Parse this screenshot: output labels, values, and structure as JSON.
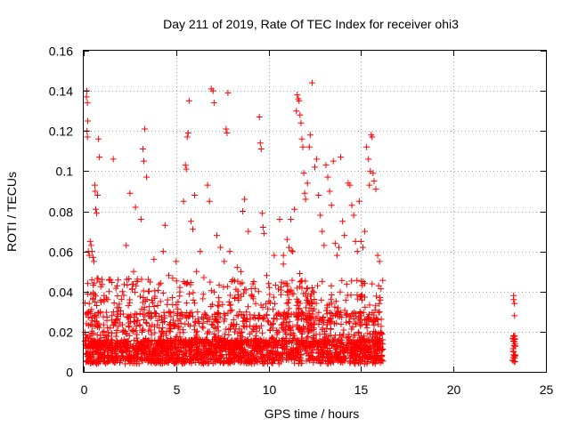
{
  "chart_data": {
    "type": "scatter",
    "title": "Day 211 of 2019, Rate Of TEC Index for receiver ohi3",
    "xlabel": "GPS time / hours",
    "ylabel": "ROTI / TECUs",
    "xlim": [
      0,
      25
    ],
    "ylim": [
      0,
      0.16
    ],
    "xticks": [
      "0",
      "5",
      "10",
      "15",
      "20",
      "25"
    ],
    "yticks": [
      "0",
      "0.02",
      "0.04",
      "0.06",
      "0.08",
      "0.1",
      "0.12",
      "0.14",
      "0.16"
    ],
    "grid": true,
    "marker": "+",
    "color": "#ff0000",
    "series": [
      {
        "points": [
          [
            0.15,
            0.137
          ],
          [
            0.17,
            0.14
          ],
          [
            0.2,
            0.134
          ],
          [
            0.22,
            0.125
          ],
          [
            0.18,
            0.12
          ],
          [
            0.2,
            0.117
          ],
          [
            0.25,
            0.06
          ],
          [
            0.3,
            0.058
          ],
          [
            0.35,
            0.065
          ],
          [
            0.4,
            0.063
          ],
          [
            0.45,
            0.06
          ],
          [
            0.5,
            0.057
          ],
          [
            0.55,
            0.055
          ],
          [
            0.6,
            0.093
          ],
          [
            0.62,
            0.09
          ],
          [
            0.65,
            0.081
          ],
          [
            0.7,
            0.079
          ],
          [
            0.75,
            0.088
          ],
          [
            0.8,
            0.116
          ],
          [
            0.85,
            0.107
          ],
          [
            0.3,
            0.034
          ],
          [
            0.35,
            0.03
          ],
          [
            0.5,
            0.036
          ],
          [
            0.7,
            0.033
          ],
          [
            0.9,
            0.03
          ],
          [
            1.1,
            0.038
          ],
          [
            1.3,
            0.036
          ],
          [
            1.6,
            0.106
          ],
          [
            1.9,
            0.032
          ],
          [
            2.1,
            0.04
          ],
          [
            2.3,
            0.063
          ],
          [
            2.5,
            0.089
          ],
          [
            2.7,
            0.05
          ],
          [
            2.8,
            0.082
          ],
          [
            2.9,
            0.045
          ],
          [
            3.1,
            0.076
          ],
          [
            3.2,
            0.111
          ],
          [
            3.25,
            0.105
          ],
          [
            3.3,
            0.121
          ],
          [
            3.4,
            0.097
          ],
          [
            3.5,
            0.04
          ],
          [
            3.8,
            0.056
          ],
          [
            4.0,
            0.033
          ],
          [
            4.3,
            0.06
          ],
          [
            4.4,
            0.073
          ],
          [
            4.6,
            0.048
          ],
          [
            4.8,
            0.037
          ],
          [
            5.0,
            0.055
          ],
          [
            5.2,
            0.042
          ],
          [
            5.4,
            0.085
          ],
          [
            5.5,
            0.103
          ],
          [
            5.55,
            0.101
          ],
          [
            5.6,
            0.117
          ],
          [
            5.65,
            0.119
          ],
          [
            5.7,
            0.135
          ],
          [
            5.8,
            0.075
          ],
          [
            5.9,
            0.071
          ],
          [
            6.0,
            0.088
          ],
          [
            6.1,
            0.05
          ],
          [
            6.3,
            0.06
          ],
          [
            6.5,
            0.047
          ],
          [
            6.7,
            0.093
          ],
          [
            6.8,
            0.085
          ],
          [
            6.9,
            0.141
          ],
          [
            7.0,
            0.14
          ],
          [
            7.05,
            0.134
          ],
          [
            7.2,
            0.068
          ],
          [
            7.4,
            0.062
          ],
          [
            7.6,
            0.055
          ],
          [
            7.7,
            0.121
          ],
          [
            7.75,
            0.119
          ],
          [
            7.8,
            0.139
          ],
          [
            7.9,
            0.06
          ],
          [
            8.0,
            0.045
          ],
          [
            8.3,
            0.052
          ],
          [
            8.5,
            0.05
          ],
          [
            8.6,
            0.08
          ],
          [
            8.7,
            0.086
          ],
          [
            8.9,
            0.07
          ],
          [
            9.2,
            0.045
          ],
          [
            9.5,
            0.127
          ],
          [
            9.55,
            0.114
          ],
          [
            9.6,
            0.111
          ],
          [
            9.65,
            0.079
          ],
          [
            9.7,
            0.072
          ],
          [
            9.75,
            0.069
          ],
          [
            9.9,
            0.048
          ],
          [
            10.0,
            0.044
          ],
          [
            10.3,
            0.058
          ],
          [
            10.6,
            0.076
          ],
          [
            10.8,
            0.058
          ],
          [
            11.0,
            0.066
          ],
          [
            11.1,
            0.062
          ],
          [
            11.2,
            0.076
          ],
          [
            11.3,
            0.06
          ],
          [
            11.4,
            0.081
          ],
          [
            11.5,
            0.13
          ],
          [
            11.55,
            0.138
          ],
          [
            11.6,
            0.136
          ],
          [
            11.65,
            0.135
          ],
          [
            11.7,
            0.128
          ],
          [
            11.75,
            0.124
          ],
          [
            11.8,
            0.116
          ],
          [
            11.85,
            0.112
          ],
          [
            11.9,
            0.099
          ],
          [
            11.95,
            0.089
          ],
          [
            12.0,
            0.086
          ],
          [
            12.1,
            0.094
          ],
          [
            12.2,
            0.112
          ],
          [
            12.25,
            0.118
          ],
          [
            12.35,
            0.144
          ],
          [
            12.5,
            0.102
          ],
          [
            12.6,
            0.106
          ],
          [
            12.7,
            0.088
          ],
          [
            12.8,
            0.078
          ],
          [
            12.9,
            0.07
          ],
          [
            13.0,
            0.063
          ],
          [
            13.1,
            0.103
          ],
          [
            13.2,
            0.097
          ],
          [
            13.3,
            0.09
          ],
          [
            13.4,
            0.083
          ],
          [
            13.5,
            0.105
          ],
          [
            13.6,
            0.064
          ],
          [
            13.7,
            0.058
          ],
          [
            13.8,
            0.062
          ],
          [
            13.9,
            0.107
          ],
          [
            14.0,
            0.075
          ],
          [
            14.1,
            0.068
          ],
          [
            14.3,
            0.094
          ],
          [
            14.4,
            0.093
          ],
          [
            14.5,
            0.083
          ],
          [
            14.6,
            0.078
          ],
          [
            14.7,
            0.065
          ],
          [
            14.8,
            0.06
          ],
          [
            14.9,
            0.085
          ],
          [
            15.0,
            0.065
          ],
          [
            15.1,
            0.062
          ],
          [
            15.2,
            0.07
          ],
          [
            15.3,
            0.112
          ],
          [
            15.4,
            0.106
          ],
          [
            15.45,
            0.093
          ],
          [
            15.5,
            0.1
          ],
          [
            15.55,
            0.118
          ],
          [
            15.6,
            0.117
          ],
          [
            15.65,
            0.099
          ],
          [
            15.7,
            0.095
          ],
          [
            15.8,
            0.091
          ],
          [
            15.9,
            0.058
          ],
          [
            16.0,
            0.055
          ],
          [
            23.25,
            0.038
          ],
          [
            23.25,
            0.036
          ],
          [
            23.3,
            0.034
          ],
          [
            23.3,
            0.028
          ],
          [
            23.25,
            0.018
          ],
          [
            23.3,
            0.015
          ],
          [
            23.25,
            0.01
          ],
          [
            23.3,
            0.008
          ],
          [
            23.3,
            0.005
          ]
        ]
      }
    ]
  }
}
